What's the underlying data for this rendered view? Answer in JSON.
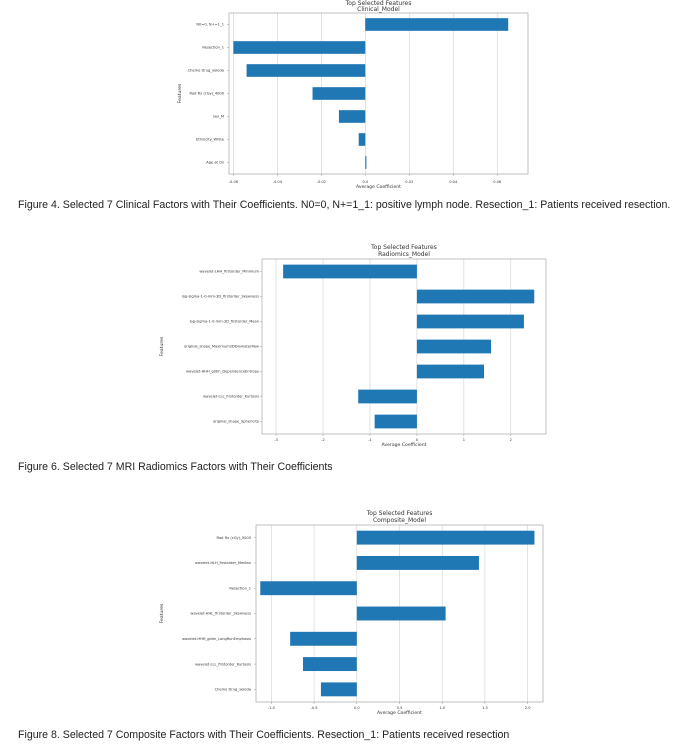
{
  "colors": {
    "bar": "#1f77b4",
    "grid": "#d0d0d0",
    "axis": "#9a9a9a"
  },
  "charts": [
    {
      "id": "clinical",
      "chart_data": {
        "type": "bar",
        "orientation": "horizontal",
        "title": "Top Selected Features",
        "subtitle": "Clinical_Model",
        "xlabel": "Average Coefficient",
        "ylabel": "Features",
        "xlim": [
          -0.062,
          0.074
        ],
        "xticks": [
          -0.06,
          -0.04,
          -0.02,
          0.0,
          0.02,
          0.04,
          0.06
        ],
        "xtick_labels": [
          "-0.06",
          "-0.04",
          "-0.02",
          "0.0",
          "0.02",
          "0.04",
          "0.06"
        ],
        "categories": [
          "N0=0, N+=1_1",
          "Resection_1",
          "Chemo Drug_xeloda",
          "Rad Rx (cGy)_4000",
          "sex_M",
          "Ethnicity_White",
          "Age at Dx"
        ],
        "values": [
          0.065,
          -0.06,
          -0.054,
          -0.024,
          -0.012,
          -0.003,
          0.0005
        ]
      },
      "caption": "Figure 4. Selected 7 Clinical Factors with Their Coefficients. N0=0, N+=1_1: positive lymph node. Resection_1: Patients received resection."
    },
    {
      "id": "radiomics",
      "chart_data": {
        "type": "bar",
        "orientation": "horizontal",
        "title": "Top Selected Features",
        "subtitle": "Radiomics_Model",
        "xlabel": "Average Coefficient",
        "ylabel": "Features",
        "xlim": [
          -3.3,
          2.75
        ],
        "xticks": [
          -3,
          -2,
          -1,
          0,
          1,
          2
        ],
        "xtick_labels": [
          "-3",
          "-2",
          "-1",
          "0",
          "1",
          "2"
        ],
        "categories": [
          "wavelet-LHH_firstorder_Minimum",
          "log-sigma-1-0-mm-3D_firstorder_Skewness",
          "log-sigma-1-0-mm-3D_firstorder_Mean",
          "original_shape_Maximum2DDiameterRow",
          "wavelet-HHH_gldm_DependenceEntropy",
          "wavelet-LLL_firstorder_Kurtosis",
          "original_shape_Sphericity"
        ],
        "values": [
          -2.85,
          2.5,
          2.28,
          1.58,
          1.43,
          -1.25,
          -0.9
        ]
      },
      "caption": "Figure 6. Selected 7 MRI Radiomics Factors with Their Coefficients"
    },
    {
      "id": "composite",
      "chart_data": {
        "type": "bar",
        "orientation": "horizontal",
        "title": "Top Selected Features",
        "subtitle": "Composite_Model",
        "xlabel": "Average Coefficient",
        "ylabel": "Features",
        "xlim": [
          -1.18,
          2.18
        ],
        "xticks": [
          -1.0,
          -0.5,
          0.0,
          0.5,
          1.0,
          1.5,
          2.0
        ],
        "xtick_labels": [
          "-1.0",
          "-0.5",
          "0.0",
          "0.5",
          "1.0",
          "1.5",
          "2.0"
        ],
        "categories": [
          "Rad Rx (cGy)_5000",
          "wavelet-HLH_firstorder_Median",
          "Resection_1",
          "wavelet-HHL_firstorder_Skewness",
          "wavelet-HHH_gldm_LongRunEmphasis",
          "wavelet-LLL_firstorder_Kurtosis",
          "Chemo Drug_xeloda"
        ],
        "values": [
          2.08,
          1.43,
          -1.13,
          1.04,
          -0.78,
          -0.63,
          -0.42
        ]
      },
      "caption": "Figure 8. Selected 7 Composite Factors with Their Coefficients. Resection_1: Patients received resection"
    }
  ]
}
